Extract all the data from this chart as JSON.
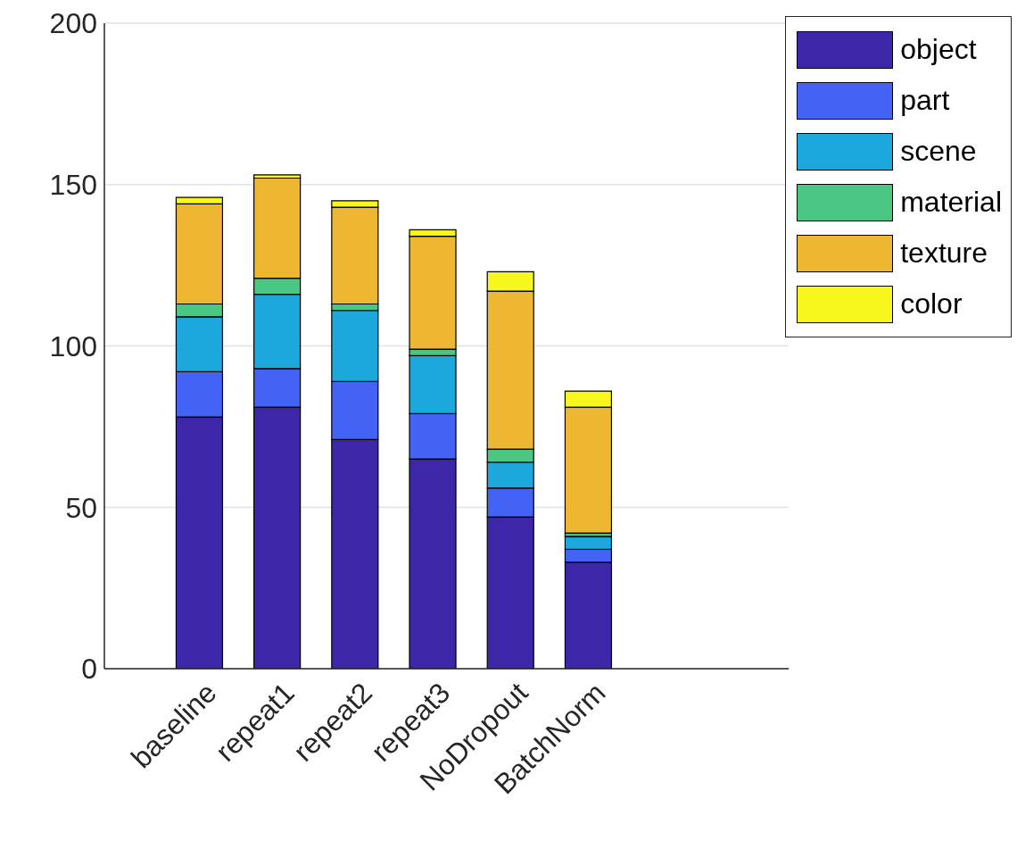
{
  "chart_data": {
    "type": "bar",
    "stacked": true,
    "categories": [
      "baseline",
      "repeat1",
      "repeat2",
      "repeat3",
      "NoDropout",
      "BatchNorm"
    ],
    "series": [
      {
        "name": "object",
        "color": "#3d26a8",
        "values": [
          78,
          81,
          71,
          65,
          47,
          33
        ]
      },
      {
        "name": "part",
        "color": "#4263f5",
        "values": [
          14,
          12,
          18,
          14,
          9,
          4
        ]
      },
      {
        "name": "scene",
        "color": "#1ca8dd",
        "values": [
          17,
          23,
          22,
          18,
          8,
          4
        ]
      },
      {
        "name": "material",
        "color": "#4ac883",
        "values": [
          4,
          5,
          2,
          2,
          4,
          1
        ]
      },
      {
        "name": "texture",
        "color": "#edb734",
        "values": [
          31,
          31,
          30,
          35,
          49,
          39
        ]
      },
      {
        "name": "color",
        "color": "#f7f71e",
        "values": [
          2,
          1,
          2,
          2,
          6,
          5
        ]
      }
    ],
    "ylim": [
      0,
      200
    ],
    "yticks": [
      0,
      50,
      100,
      150,
      200
    ],
    "grid": "y",
    "legend": "top right"
  }
}
